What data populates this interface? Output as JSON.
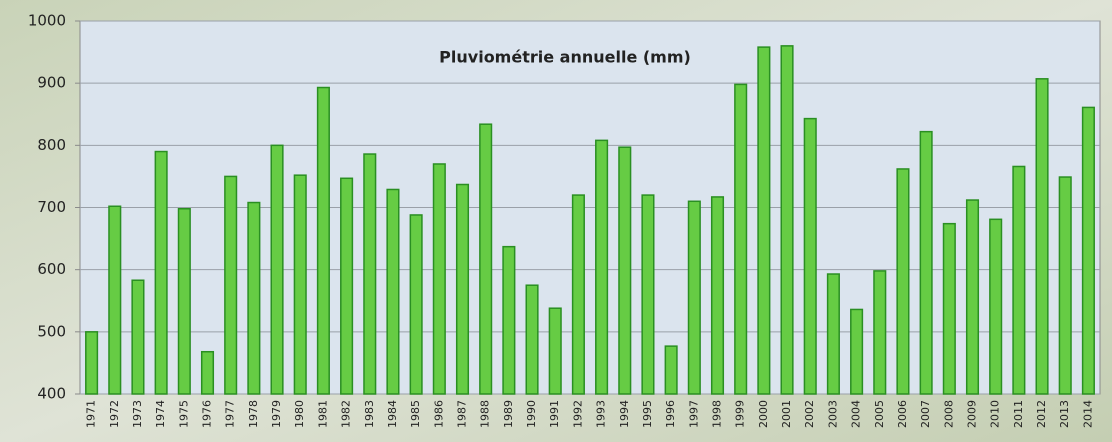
{
  "chart_data": {
    "type": "bar",
    "title": "Pluviométrie annuelle (mm)",
    "categories": [
      "1971",
      "1972",
      "1973",
      "1974",
      "1975",
      "1976",
      "1977",
      "1978",
      "1979",
      "1980",
      "1981",
      "1982",
      "1983",
      "1984",
      "1985",
      "1986",
      "1987",
      "1988",
      "1989",
      "1990",
      "1991",
      "1992",
      "1993",
      "1994",
      "1995",
      "1996",
      "1997",
      "1998",
      "1999",
      "2000",
      "2001",
      "2002",
      "2003",
      "2004",
      "2005",
      "2006",
      "2007",
      "2008",
      "2009",
      "2010",
      "2011",
      "2012",
      "2013",
      "2014"
    ],
    "values": [
      500,
      702,
      583,
      790,
      698,
      468,
      750,
      708,
      800,
      752,
      893,
      747,
      786,
      729,
      688,
      770,
      737,
      834,
      637,
      575,
      538,
      720,
      808,
      797,
      720,
      477,
      710,
      717,
      898,
      958,
      960,
      843,
      593,
      536,
      598,
      762,
      822,
      674,
      712,
      681,
      766,
      907,
      749,
      861
    ],
    "color": "#66cc44",
    "ylim": [
      400,
      1000
    ],
    "yticks": [
      400,
      500,
      600,
      700,
      800,
      900,
      1000
    ],
    "grid": true
  }
}
